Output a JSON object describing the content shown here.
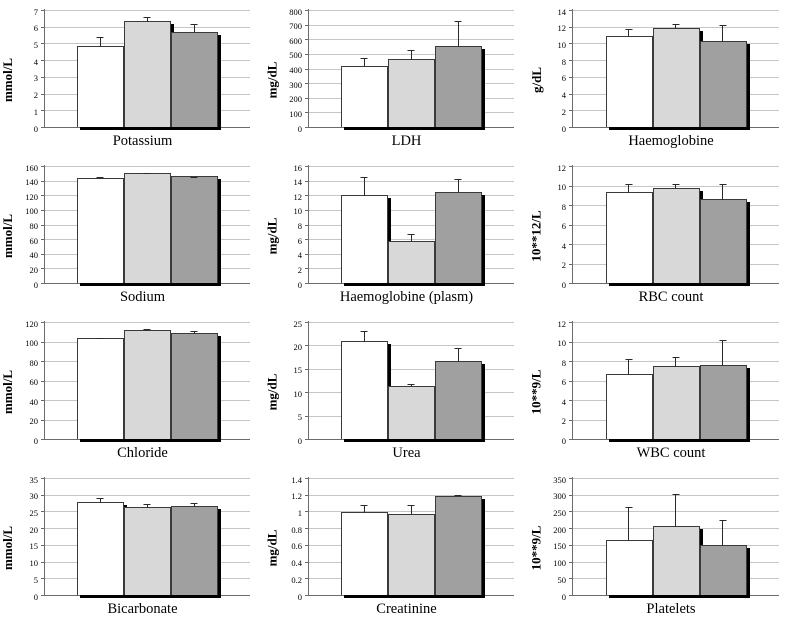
{
  "figure": {
    "background": "#ffffff",
    "layout": "4x3 grid of clustered bar charts, three unlabeled series per chart (no legend shown)",
    "series_colors": [
      "#ffffff",
      "#d8d8d8",
      "#a0a0a0"
    ],
    "bar_border_color": "#3a3a3a",
    "shadow_color": "#000000",
    "gridline_color": "#c6c6c6",
    "axis_color": "#6b6b6b"
  },
  "chart_data": [
    {
      "id": "potassium",
      "type": "bar",
      "title": "Potassium",
      "ylabel": "mmol/L",
      "ylim": [
        0,
        7
      ],
      "ystep": 1,
      "series": [
        {
          "name": "series-1",
          "values": [
            4.85
          ]
        },
        {
          "name": "series-2",
          "values": [
            6.35
          ]
        },
        {
          "name": "series-3",
          "values": [
            5.7
          ]
        }
      ],
      "values": [
        4.85,
        6.35,
        5.7
      ],
      "errors": [
        0.6,
        0.3,
        0.5
      ],
      "grid": true,
      "legend": "none"
    },
    {
      "id": "ldh",
      "type": "bar",
      "title": "LDH",
      "ylabel": "mg/dL",
      "ylim": [
        0,
        800
      ],
      "ystep": 100,
      "series": [
        {
          "name": "series-1",
          "values": [
            415
          ]
        },
        {
          "name": "series-2",
          "values": [
            465
          ]
        },
        {
          "name": "series-3",
          "values": [
            555
          ]
        }
      ],
      "values": [
        415,
        465,
        555
      ],
      "errors": [
        65,
        70,
        175
      ],
      "grid": true,
      "legend": "none"
    },
    {
      "id": "haemoglobine",
      "type": "bar",
      "title": "Haemoglobine",
      "ylabel": "g/dL",
      "ylim": [
        0,
        14
      ],
      "ystep": 2,
      "series": [
        {
          "name": "series-1",
          "values": [
            10.9
          ]
        },
        {
          "name": "series-2",
          "values": [
            11.9
          ]
        },
        {
          "name": "series-3",
          "values": [
            10.3
          ]
        }
      ],
      "values": [
        10.9,
        11.9,
        10.3
      ],
      "errors": [
        1.0,
        0.5,
        2.0
      ],
      "grid": true,
      "legend": "none"
    },
    {
      "id": "sodium",
      "type": "bar",
      "title": "Sodium",
      "ylabel": "mmol/L",
      "ylim": [
        0,
        160
      ],
      "ystep": 20,
      "series": [
        {
          "name": "series-1",
          "values": [
            144
          ]
        },
        {
          "name": "series-2",
          "values": [
            150
          ]
        },
        {
          "name": "series-3",
          "values": [
            146
          ]
        }
      ],
      "values": [
        144,
        150,
        146
      ],
      "errors": [
        2,
        1.5,
        1
      ],
      "grid": true,
      "legend": "none"
    },
    {
      "id": "haemoglobine-plasm",
      "type": "bar",
      "title": "Haemoglobine (plasm)",
      "ylabel": "mg/dL",
      "ylim": [
        0,
        16
      ],
      "ystep": 2,
      "series": [
        {
          "name": "series-1",
          "values": [
            12.0
          ]
        },
        {
          "name": "series-2",
          "values": [
            5.7
          ]
        },
        {
          "name": "series-3",
          "values": [
            12.4
          ]
        }
      ],
      "values": [
        12.0,
        5.7,
        12.4
      ],
      "errors": [
        2.6,
        1.1,
        2.0
      ],
      "grid": true,
      "legend": "none"
    },
    {
      "id": "rbc-count",
      "type": "bar",
      "title": "RBC count",
      "ylabel": "10**12/L",
      "ylim": [
        0,
        12
      ],
      "ystep": 2,
      "series": [
        {
          "name": "series-1",
          "values": [
            9.3
          ]
        },
        {
          "name": "series-2",
          "values": [
            9.7
          ]
        },
        {
          "name": "series-3",
          "values": [
            8.6
          ]
        }
      ],
      "values": [
        9.3,
        9.7,
        8.6
      ],
      "errors": [
        1.0,
        0.6,
        1.7
      ],
      "grid": true,
      "legend": "none"
    },
    {
      "id": "chloride",
      "type": "bar",
      "title": "Chloride",
      "ylabel": "mmol/L",
      "ylim": [
        0,
        120
      ],
      "ystep": 20,
      "series": [
        {
          "name": "series-1",
          "values": [
            104
          ]
        },
        {
          "name": "series-2",
          "values": [
            112
          ]
        },
        {
          "name": "series-3",
          "values": [
            109
          ]
        }
      ],
      "values": [
        104,
        112,
        109
      ],
      "errors": [
        1,
        2,
        3
      ],
      "grid": true,
      "legend": "none"
    },
    {
      "id": "urea",
      "type": "bar",
      "title": "Urea",
      "ylabel": "mg/dL",
      "ylim": [
        0,
        25
      ],
      "ystep": 5,
      "series": [
        {
          "name": "series-1",
          "values": [
            21
          ]
        },
        {
          "name": "series-2",
          "values": [
            11.3
          ]
        },
        {
          "name": "series-3",
          "values": [
            16.6
          ]
        }
      ],
      "values": [
        21,
        11.3,
        16.6
      ],
      "errors": [
        2.2,
        0.6,
        3.1
      ],
      "grid": true,
      "legend": "none"
    },
    {
      "id": "wbc-count",
      "type": "bar",
      "title": "WBC count",
      "ylabel": "10**9/L",
      "ylim": [
        0,
        12
      ],
      "ystep": 2,
      "series": [
        {
          "name": "series-1",
          "values": [
            6.7
          ]
        },
        {
          "name": "series-2",
          "values": [
            7.5
          ]
        },
        {
          "name": "series-3",
          "values": [
            7.55
          ]
        }
      ],
      "values": [
        6.7,
        7.5,
        7.55
      ],
      "errors": [
        1.6,
        1.0,
        2.7
      ],
      "grid": true,
      "legend": "none"
    },
    {
      "id": "bicarbonate",
      "type": "bar",
      "title": "Bicarbonate",
      "ylabel": "mmol/L",
      "ylim": [
        0,
        35
      ],
      "ystep": 5,
      "series": [
        {
          "name": "series-1",
          "values": [
            27.8
          ]
        },
        {
          "name": "series-2",
          "values": [
            26.2
          ]
        },
        {
          "name": "series-3",
          "values": [
            26.6
          ]
        }
      ],
      "values": [
        27.8,
        26.2,
        26.6
      ],
      "errors": [
        1.5,
        1.2,
        1.2
      ],
      "grid": true,
      "legend": "none"
    },
    {
      "id": "creatinine",
      "type": "bar",
      "title": "Creatinine",
      "ylabel": "mg/dL",
      "ylim": [
        0,
        1.4
      ],
      "ystep": 0.2,
      "series": [
        {
          "name": "series-1",
          "values": [
            0.99
          ]
        },
        {
          "name": "series-2",
          "values": [
            0.97
          ]
        },
        {
          "name": "series-3",
          "values": [
            1.18
          ]
        }
      ],
      "values": [
        0.99,
        0.97,
        1.18
      ],
      "errors": [
        0.1,
        0.12,
        0.03
      ],
      "grid": true,
      "legend": "none"
    },
    {
      "id": "platelets",
      "type": "bar",
      "title": "Platelets",
      "ylabel": "10**9/L",
      "ylim": [
        0,
        350
      ],
      "ystep": 50,
      "series": [
        {
          "name": "series-1",
          "values": [
            165
          ]
        },
        {
          "name": "series-2",
          "values": [
            207
          ]
        },
        {
          "name": "series-3",
          "values": [
            150
          ]
        }
      ],
      "values": [
        165,
        207,
        150
      ],
      "errors": [
        100,
        98,
        78
      ],
      "grid": true,
      "legend": "none"
    }
  ]
}
